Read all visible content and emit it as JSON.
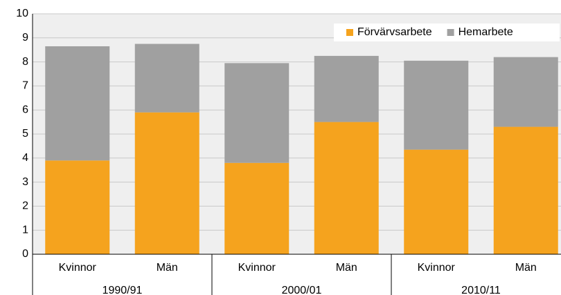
{
  "chart_data": {
    "type": "stacked_bar",
    "categories": [
      "Kvinnor",
      "Män",
      "Kvinnor",
      "Män",
      "Kvinnor",
      "Män"
    ],
    "groups": [
      "1990/91",
      "2000/01",
      "2010/11"
    ],
    "series": [
      {
        "name": "Förvärvsarbete",
        "color": "#f5a31e",
        "values": [
          3.9,
          5.9,
          3.8,
          5.5,
          4.35,
          5.3
        ]
      },
      {
        "name": "Hemarbete",
        "color": "#a0a0a0",
        "values": [
          4.75,
          2.85,
          4.15,
          2.75,
          3.7,
          2.9
        ]
      }
    ],
    "ylim": [
      0,
      10
    ],
    "yticks": [
      0,
      1,
      2,
      3,
      4,
      5,
      6,
      7,
      8,
      9,
      10
    ],
    "grid": true,
    "legend": "top-right"
  }
}
